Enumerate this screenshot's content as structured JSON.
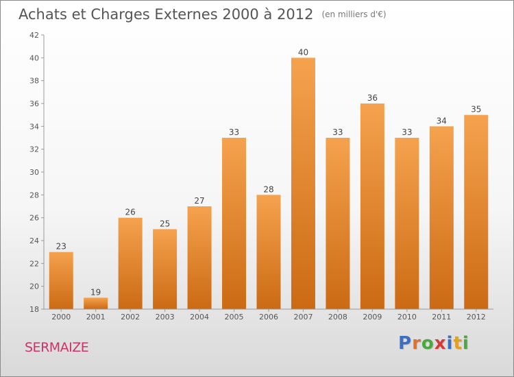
{
  "header": {
    "title": "Achats et Charges Externes 2000 à 2012",
    "unit": "(en milliers d'€)"
  },
  "footer": {
    "commune": "SERMAIZE",
    "logo_letters": [
      "P",
      "r",
      "o",
      "x",
      "i",
      "t",
      "i"
    ]
  },
  "colors": {
    "bar_top": "#f5a24e",
    "bar_bottom": "#cc6a14",
    "commune": "#cc3366",
    "logo": [
      "#3b6fc2",
      "#e0702a",
      "#4aa83e",
      "#d43a3a",
      "#3b6fc2",
      "#e0a020",
      "#4aa83e"
    ]
  },
  "chart_data": {
    "type": "bar",
    "categories": [
      "2000",
      "2001",
      "2002",
      "2003",
      "2004",
      "2005",
      "2006",
      "2007",
      "2008",
      "2009",
      "2010",
      "2011",
      "2012"
    ],
    "values": [
      23,
      19,
      26,
      25,
      27,
      33,
      28,
      40,
      33,
      36,
      33,
      34,
      35
    ],
    "title": "Achats et Charges Externes 2000 à 2012",
    "xlabel": "",
    "ylabel": "",
    "ylim": [
      18,
      42
    ],
    "yticks": [
      18,
      20,
      22,
      24,
      26,
      28,
      30,
      32,
      34,
      36,
      38,
      40,
      42
    ],
    "grid": false,
    "legend": "none"
  }
}
